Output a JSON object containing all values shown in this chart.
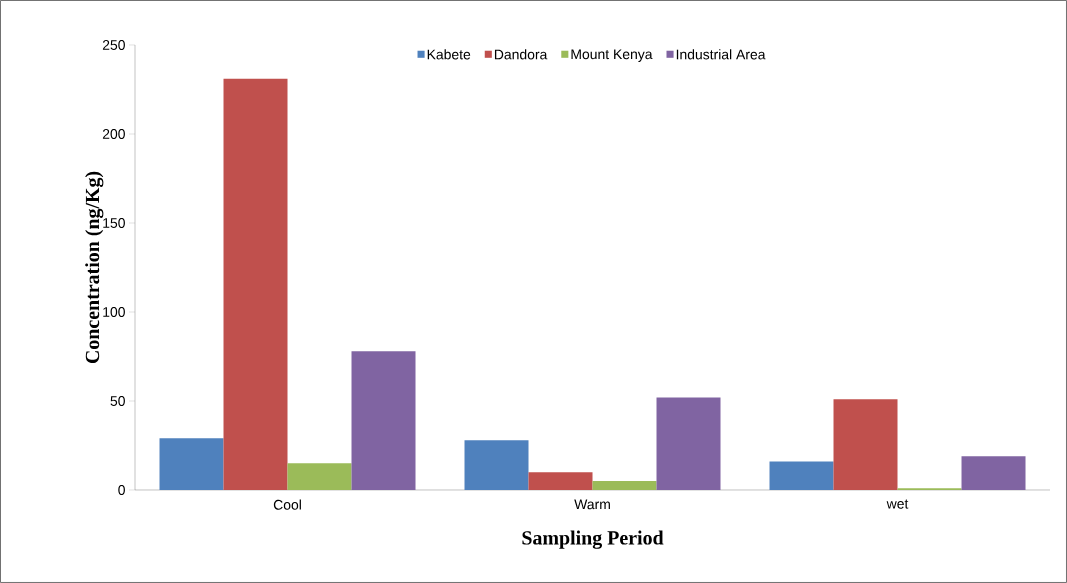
{
  "chart_data": {
    "type": "bar",
    "xlabel": "Sampling Period",
    "ylabel": "Concentration (ng/Kg)",
    "categories": [
      "Cool",
      "Warm",
      "wet"
    ],
    "series": [
      {
        "name": "Kabete",
        "color": "#4f81bd",
        "values": [
          29,
          28,
          16
        ]
      },
      {
        "name": "Dandora",
        "color": "#c0504d",
        "values": [
          231,
          10,
          51
        ]
      },
      {
        "name": "Mount Kenya",
        "color": "#9bbb59",
        "values": [
          15,
          5,
          1
        ]
      },
      {
        "name": "Industrial Area",
        "color": "#8064a2",
        "values": [
          78,
          52,
          19
        ]
      }
    ],
    "ylim": [
      0,
      250
    ],
    "yticks": [
      0,
      50,
      100,
      150,
      200,
      250
    ],
    "legend": "top"
  }
}
